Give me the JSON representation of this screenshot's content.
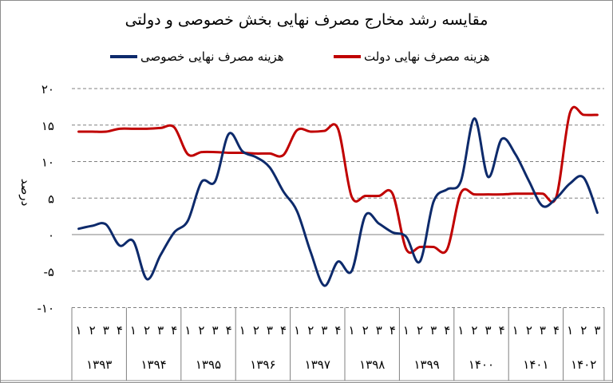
{
  "chart_data": {
    "type": "line",
    "title": "مقایسه رشد مخارج مصرف نهایی بخش خصوصی و دولتی",
    "ylabel": "درصد",
    "xlabel": "",
    "ylim": [
      -10,
      20
    ],
    "yticks": [
      20,
      15,
      10,
      5,
      0,
      -5,
      -10
    ],
    "ytick_labels": [
      "۲۰",
      "۱۵",
      "۱۰",
      "۵",
      "۰",
      "-۵",
      "-۱۰"
    ],
    "grid": true,
    "legend_position": "top",
    "years": [
      {
        "label": "۱۳۹۳",
        "quarters": [
          "۱",
          "۲",
          "۳",
          "۴"
        ]
      },
      {
        "label": "۱۳۹۴",
        "quarters": [
          "۱",
          "۲",
          "۳",
          "۴"
        ]
      },
      {
        "label": "۱۳۹۵",
        "quarters": [
          "۱",
          "۲",
          "۳",
          "۴"
        ]
      },
      {
        "label": "۱۳۹۶",
        "quarters": [
          "۱",
          "۲",
          "۳",
          "۴"
        ]
      },
      {
        "label": "۱۳۹۷",
        "quarters": [
          "۱",
          "۲",
          "۳",
          "۴"
        ]
      },
      {
        "label": "۱۳۹۸",
        "quarters": [
          "۱",
          "۲",
          "۳",
          "۴"
        ]
      },
      {
        "label": "۱۳۹۹",
        "quarters": [
          "۱",
          "۲",
          "۳",
          "۴"
        ]
      },
      {
        "label": "۱۴۰۰",
        "quarters": [
          "۱",
          "۲",
          "۳",
          "۴"
        ]
      },
      {
        "label": "۱۴۰۱",
        "quarters": [
          "۱",
          "۲",
          "۳",
          "۴"
        ]
      },
      {
        "label": "۱۴۰۲",
        "quarters": [
          "۱",
          "۲",
          "۳"
        ]
      }
    ],
    "series": [
      {
        "name": "هزینه مصرف نهایی دولت",
        "color": "#c00000",
        "values": [
          14.1,
          14.1,
          14.1,
          14.5,
          14.5,
          14.5,
          14.6,
          14.7,
          11.0,
          11.3,
          11.3,
          11.2,
          11.2,
          11.1,
          11.1,
          10.9,
          14.3,
          14.1,
          14.2,
          14.5,
          5.2,
          5.3,
          5.3,
          5.6,
          -2.0,
          -1.7,
          -1.7,
          -2.0,
          5.7,
          5.5,
          5.5,
          5.5,
          5.6,
          5.6,
          5.6,
          5.2,
          16.7,
          16.4,
          16.4
        ]
      },
      {
        "name": "هزینه مصرف نهایی خصوصی",
        "color": "#0d2a6b",
        "values": [
          0.8,
          1.2,
          1.4,
          -1.5,
          -0.9,
          -6.1,
          -2.8,
          0.3,
          1.9,
          7.2,
          7.3,
          13.8,
          11.4,
          10.6,
          9.2,
          5.9,
          3.2,
          -2.4,
          -7.0,
          -3.7,
          -5.0,
          2.6,
          1.5,
          0.3,
          -0.3,
          -3.7,
          4.5,
          6.2,
          7.3,
          15.9,
          7.9,
          13.1,
          11.0,
          7.3,
          3.9,
          5.0,
          7.0,
          7.8,
          3.0
        ]
      }
    ]
  }
}
